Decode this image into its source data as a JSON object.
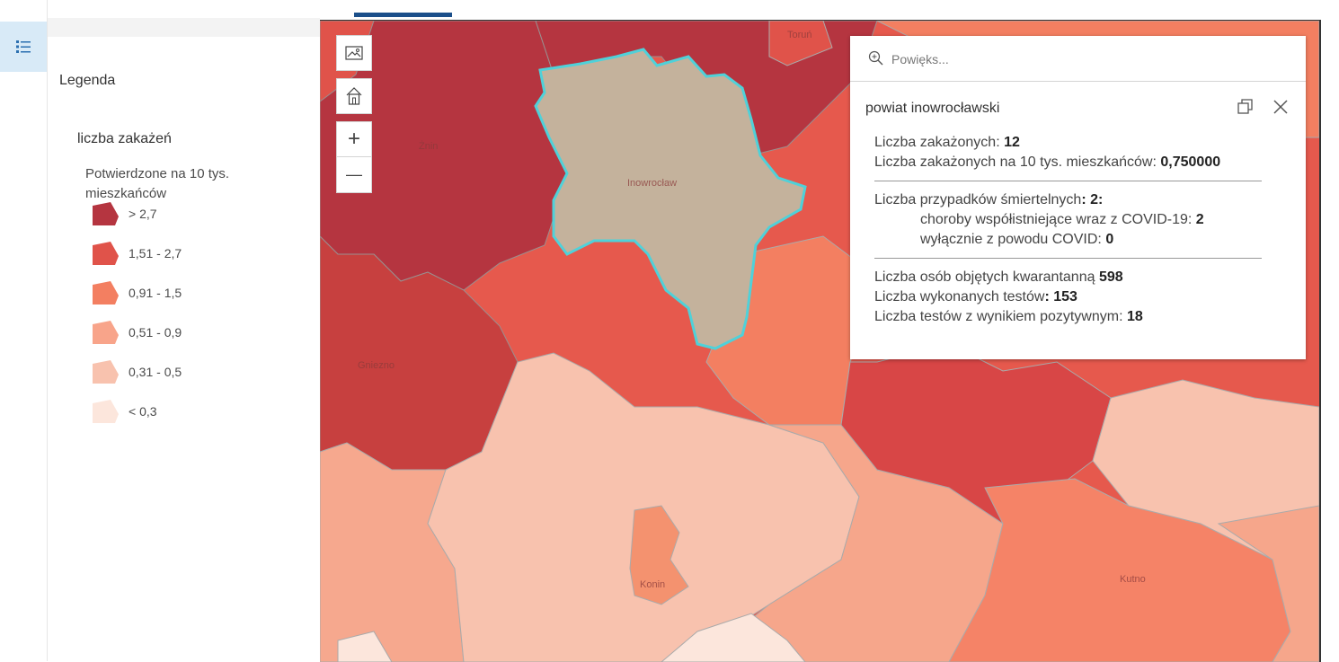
{
  "legend": {
    "title": "Legenda",
    "layer_title": "liczba zakażeń",
    "field_description": "Potwierdzone na 10 tys. mieszkańców",
    "classes": [
      {
        "label": "> 2,7",
        "color": "#b53540"
      },
      {
        "label": "1,51 - 2,7",
        "color": "#e0534a"
      },
      {
        "label": "0,91 - 1,5",
        "color": "#f37f61"
      },
      {
        "label": "0,51 - 0,9",
        "color": "#f8a48a"
      },
      {
        "label": "0,31 - 0,5",
        "color": "#f8c2ae"
      },
      {
        "label": "< 0,3",
        "color": "#fce6dc"
      }
    ]
  },
  "map": {
    "city_labels": [
      "Toruń",
      "Żnin",
      "Inowrocław",
      "Gniezno",
      "Konin",
      "Kutno"
    ],
    "selected_color": "#c4b29c",
    "selected_outline": "#4fd1d9",
    "tools": {
      "basemap_icon": "image-icon",
      "home_icon": "home-icon",
      "zoom_in_symbol": "+",
      "zoom_out_symbol": "—"
    }
  },
  "popup": {
    "search_placeholder": "Powięks...",
    "title": "powiat inowrocławski",
    "infected_label": "Liczba zakażonych:",
    "infected_value": "12",
    "infected_per_10k_label": "Liczba zakażonych na 10 tys. mieszkańców:",
    "infected_per_10k_value": "0,750000",
    "deaths_label": "Liczba przypadków śmiertelnych",
    "deaths_value": ": 2:",
    "comorbid_label": "choroby współistniejące wraz z COVID-19:",
    "comorbid_value": "2",
    "covid_only_label": "wyłącznie z powodu COVID:",
    "covid_only_value": "0",
    "quarantine_label": "Liczba osób objętych kwarantanną",
    "quarantine_value": "598",
    "tests_label": "Liczba wykonanych testów",
    "tests_value": ": 153",
    "positive_tests_label": "Liczba testów z wynikiem pozytywnym:",
    "positive_tests_value": "18"
  }
}
